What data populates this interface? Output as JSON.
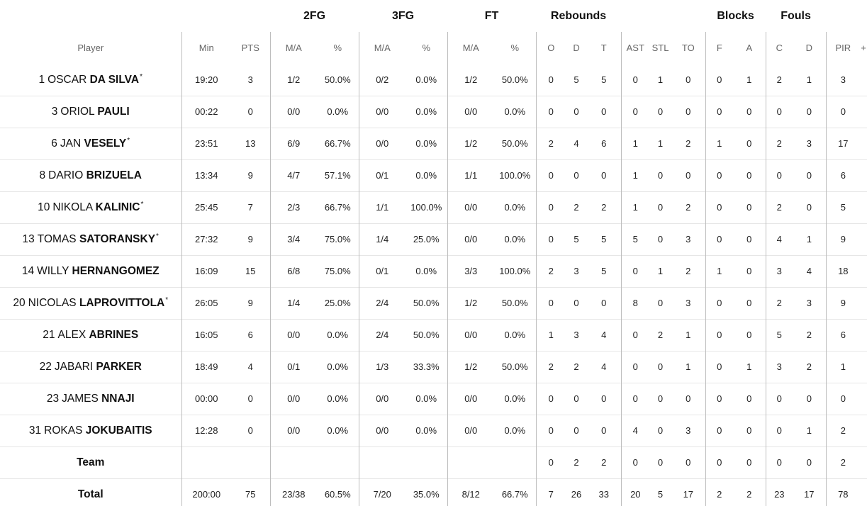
{
  "groups": {
    "fg2": "2FG",
    "fg3": "3FG",
    "ft": "FT",
    "rebounds": "Rebounds",
    "blocks": "Blocks",
    "fouls": "Fouls"
  },
  "columns": {
    "player": "Player",
    "min": "Min",
    "pts": "PTS",
    "fg2_ma": "M/A",
    "fg2_pct": "%",
    "fg3_ma": "M/A",
    "fg3_pct": "%",
    "ft_ma": "M/A",
    "ft_pct": "%",
    "reb_o": "O",
    "reb_d": "D",
    "reb_t": "T",
    "ast": "AST",
    "stl": "STL",
    "to": "TO",
    "blk_f": "F",
    "blk_a": "A",
    "foul_c": "C",
    "foul_d": "D",
    "pir": "PIR",
    "more": "+"
  },
  "players": [
    {
      "num": "1",
      "first": "OSCAR",
      "last": "DA SILVA",
      "starter": "*",
      "min": "19:20",
      "pts": "3",
      "fg2_ma": "1/2",
      "fg2_pct": "50.0%",
      "fg3_ma": "0/2",
      "fg3_pct": "0.0%",
      "ft_ma": "1/2",
      "ft_pct": "50.0%",
      "reb_o": "0",
      "reb_d": "5",
      "reb_t": "5",
      "ast": "0",
      "stl": "1",
      "to": "0",
      "blk_f": "0",
      "blk_a": "1",
      "foul_c": "2",
      "foul_d": "1",
      "pir": "3"
    },
    {
      "num": "3",
      "first": "ORIOL",
      "last": "PAULI",
      "starter": "",
      "min": "00:22",
      "pts": "0",
      "fg2_ma": "0/0",
      "fg2_pct": "0.0%",
      "fg3_ma": "0/0",
      "fg3_pct": "0.0%",
      "ft_ma": "0/0",
      "ft_pct": "0.0%",
      "reb_o": "0",
      "reb_d": "0",
      "reb_t": "0",
      "ast": "0",
      "stl": "0",
      "to": "0",
      "blk_f": "0",
      "blk_a": "0",
      "foul_c": "0",
      "foul_d": "0",
      "pir": "0"
    },
    {
      "num": "6",
      "first": "JAN",
      "last": "VESELY",
      "starter": "*",
      "min": "23:51",
      "pts": "13",
      "fg2_ma": "6/9",
      "fg2_pct": "66.7%",
      "fg3_ma": "0/0",
      "fg3_pct": "0.0%",
      "ft_ma": "1/2",
      "ft_pct": "50.0%",
      "reb_o": "2",
      "reb_d": "4",
      "reb_t": "6",
      "ast": "1",
      "stl": "1",
      "to": "2",
      "blk_f": "1",
      "blk_a": "0",
      "foul_c": "2",
      "foul_d": "3",
      "pir": "17"
    },
    {
      "num": "8",
      "first": "DARIO",
      "last": "BRIZUELA",
      "starter": "",
      "min": "13:34",
      "pts": "9",
      "fg2_ma": "4/7",
      "fg2_pct": "57.1%",
      "fg3_ma": "0/1",
      "fg3_pct": "0.0%",
      "ft_ma": "1/1",
      "ft_pct": "100.0%",
      "reb_o": "0",
      "reb_d": "0",
      "reb_t": "0",
      "ast": "1",
      "stl": "0",
      "to": "0",
      "blk_f": "0",
      "blk_a": "0",
      "foul_c": "0",
      "foul_d": "0",
      "pir": "6"
    },
    {
      "num": "10",
      "first": "NIKOLA",
      "last": "KALINIC",
      "starter": "*",
      "min": "25:45",
      "pts": "7",
      "fg2_ma": "2/3",
      "fg2_pct": "66.7%",
      "fg3_ma": "1/1",
      "fg3_pct": "100.0%",
      "ft_ma": "0/0",
      "ft_pct": "0.0%",
      "reb_o": "0",
      "reb_d": "2",
      "reb_t": "2",
      "ast": "1",
      "stl": "0",
      "to": "2",
      "blk_f": "0",
      "blk_a": "0",
      "foul_c": "2",
      "foul_d": "0",
      "pir": "5"
    },
    {
      "num": "13",
      "first": "TOMAS",
      "last": "SATORANSKY",
      "starter": "*",
      "min": "27:32",
      "pts": "9",
      "fg2_ma": "3/4",
      "fg2_pct": "75.0%",
      "fg3_ma": "1/4",
      "fg3_pct": "25.0%",
      "ft_ma": "0/0",
      "ft_pct": "0.0%",
      "reb_o": "0",
      "reb_d": "5",
      "reb_t": "5",
      "ast": "5",
      "stl": "0",
      "to": "3",
      "blk_f": "0",
      "blk_a": "0",
      "foul_c": "4",
      "foul_d": "1",
      "pir": "9"
    },
    {
      "num": "14",
      "first": "WILLY",
      "last": "HERNANGOMEZ",
      "starter": "",
      "min": "16:09",
      "pts": "15",
      "fg2_ma": "6/8",
      "fg2_pct": "75.0%",
      "fg3_ma": "0/1",
      "fg3_pct": "0.0%",
      "ft_ma": "3/3",
      "ft_pct": "100.0%",
      "reb_o": "2",
      "reb_d": "3",
      "reb_t": "5",
      "ast": "0",
      "stl": "1",
      "to": "2",
      "blk_f": "1",
      "blk_a": "0",
      "foul_c": "3",
      "foul_d": "4",
      "pir": "18"
    },
    {
      "num": "20",
      "first": "NICOLAS",
      "last": "LAPROVITTOLA",
      "starter": "*",
      "min": "26:05",
      "pts": "9",
      "fg2_ma": "1/4",
      "fg2_pct": "25.0%",
      "fg3_ma": "2/4",
      "fg3_pct": "50.0%",
      "ft_ma": "1/2",
      "ft_pct": "50.0%",
      "reb_o": "0",
      "reb_d": "0",
      "reb_t": "0",
      "ast": "8",
      "stl": "0",
      "to": "3",
      "blk_f": "0",
      "blk_a": "0",
      "foul_c": "2",
      "foul_d": "3",
      "pir": "9"
    },
    {
      "num": "21",
      "first": "ALEX",
      "last": "ABRINES",
      "starter": "",
      "min": "16:05",
      "pts": "6",
      "fg2_ma": "0/0",
      "fg2_pct": "0.0%",
      "fg3_ma": "2/4",
      "fg3_pct": "50.0%",
      "ft_ma": "0/0",
      "ft_pct": "0.0%",
      "reb_o": "1",
      "reb_d": "3",
      "reb_t": "4",
      "ast": "0",
      "stl": "2",
      "to": "1",
      "blk_f": "0",
      "blk_a": "0",
      "foul_c": "5",
      "foul_d": "2",
      "pir": "6"
    },
    {
      "num": "22",
      "first": "JABARI",
      "last": "PARKER",
      "starter": "",
      "min": "18:49",
      "pts": "4",
      "fg2_ma": "0/1",
      "fg2_pct": "0.0%",
      "fg3_ma": "1/3",
      "fg3_pct": "33.3%",
      "ft_ma": "1/2",
      "ft_pct": "50.0%",
      "reb_o": "2",
      "reb_d": "2",
      "reb_t": "4",
      "ast": "0",
      "stl": "0",
      "to": "1",
      "blk_f": "0",
      "blk_a": "1",
      "foul_c": "3",
      "foul_d": "2",
      "pir": "1"
    },
    {
      "num": "23",
      "first": "JAMES",
      "last": "NNAJI",
      "starter": "",
      "min": "00:00",
      "pts": "0",
      "fg2_ma": "0/0",
      "fg2_pct": "0.0%",
      "fg3_ma": "0/0",
      "fg3_pct": "0.0%",
      "ft_ma": "0/0",
      "ft_pct": "0.0%",
      "reb_o": "0",
      "reb_d": "0",
      "reb_t": "0",
      "ast": "0",
      "stl": "0",
      "to": "0",
      "blk_f": "0",
      "blk_a": "0",
      "foul_c": "0",
      "foul_d": "0",
      "pir": "0"
    },
    {
      "num": "31",
      "first": "ROKAS",
      "last": "JOKUBAITIS",
      "starter": "",
      "min": "12:28",
      "pts": "0",
      "fg2_ma": "0/0",
      "fg2_pct": "0.0%",
      "fg3_ma": "0/0",
      "fg3_pct": "0.0%",
      "ft_ma": "0/0",
      "ft_pct": "0.0%",
      "reb_o": "0",
      "reb_d": "0",
      "reb_t": "0",
      "ast": "4",
      "stl": "0",
      "to": "3",
      "blk_f": "0",
      "blk_a": "0",
      "foul_c": "0",
      "foul_d": "1",
      "pir": "2"
    }
  ],
  "team": {
    "label": "Team",
    "reb_o": "0",
    "reb_d": "2",
    "reb_t": "2",
    "ast": "0",
    "stl": "0",
    "to": "0",
    "blk_f": "0",
    "blk_a": "0",
    "foul_c": "0",
    "foul_d": "0",
    "pir": "2"
  },
  "total": {
    "label": "Total",
    "min": "200:00",
    "pts": "75",
    "fg2_ma": "23/38",
    "fg2_pct": "60.5%",
    "fg3_ma": "7/20",
    "fg3_pct": "35.0%",
    "ft_ma": "8/12",
    "ft_pct": "66.7%",
    "reb_o": "7",
    "reb_d": "26",
    "reb_t": "33",
    "ast": "20",
    "stl": "5",
    "to": "17",
    "blk_f": "2",
    "blk_a": "2",
    "foul_c": "23",
    "foul_d": "17",
    "pir": "78"
  }
}
